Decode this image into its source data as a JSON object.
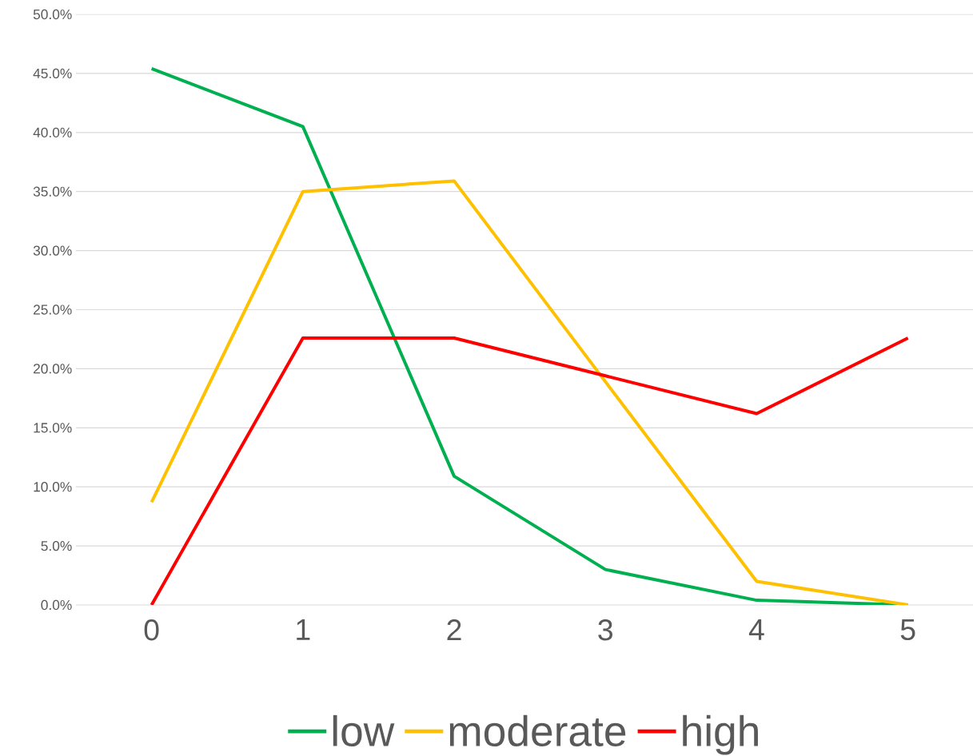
{
  "chart_data": {
    "type": "line",
    "categories": [
      "0",
      "1",
      "2",
      "3",
      "4",
      "5"
    ],
    "series": [
      {
        "name": "low",
        "color": "#00b050",
        "values": [
          45.4,
          40.5,
          10.9,
          3.0,
          0.4,
          0
        ]
      },
      {
        "name": "moderate",
        "color": "#ffc000",
        "values": [
          8.7,
          35.0,
          35.9,
          18.9,
          2.0,
          0
        ]
      },
      {
        "name": "high",
        "color": "#ff0000",
        "values": [
          0,
          22.6,
          22.6,
          19.4,
          16.2,
          22.6
        ]
      }
    ],
    "ylim": [
      0,
      50
    ],
    "yticks": [
      {
        "value": 0,
        "label": "0.0%"
      },
      {
        "value": 5,
        "label": "5.0%"
      },
      {
        "value": 10,
        "label": "10.0%"
      },
      {
        "value": 15,
        "label": "15.0%"
      },
      {
        "value": 20,
        "label": "20.0%"
      },
      {
        "value": 25,
        "label": "25.0%"
      },
      {
        "value": 30,
        "label": "30.0%"
      },
      {
        "value": 35,
        "label": "35.0%"
      },
      {
        "value": 40,
        "label": "40.0%"
      },
      {
        "value": 45,
        "label": "45.0%"
      },
      {
        "value": 50,
        "label": "50.0%"
      }
    ],
    "grid": "y",
    "legend": "bottom"
  }
}
